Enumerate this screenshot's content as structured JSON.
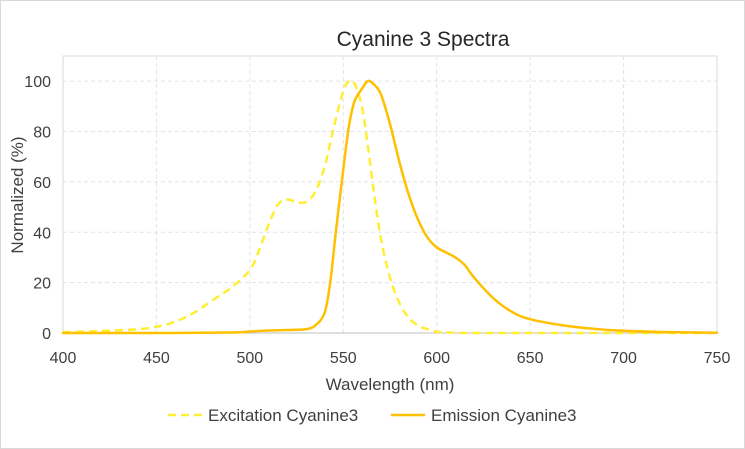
{
  "chart_data": {
    "type": "line",
    "title": "Cyanine 3  Spectra",
    "xlabel": "Wavelength (nm)",
    "ylabel": "Normalized (%)",
    "xlim": [
      400,
      750
    ],
    "ylim": [
      0,
      110
    ],
    "xticks": [
      400,
      450,
      500,
      550,
      600,
      650,
      700,
      750
    ],
    "yticks": [
      0,
      20,
      40,
      60,
      80,
      100
    ],
    "xtick_labels": [
      "400",
      "450",
      "500",
      "550",
      "600",
      "650",
      "700",
      "750"
    ],
    "ytick_labels": [
      "0",
      "20",
      "40",
      "60",
      "80",
      "100"
    ],
    "grid": true,
    "legend_position": "bottom",
    "series": [
      {
        "name": "Excitation Cyanine3",
        "color": "#ffee33",
        "style": "dashed",
        "x": [
          400,
          420,
          440,
          450,
          460,
          470,
          480,
          490,
          500,
          505,
          510,
          515,
          520,
          525,
          530,
          535,
          540,
          545,
          550,
          553,
          556,
          560,
          563,
          566,
          570,
          575,
          580,
          585,
          590,
          595,
          600,
          610,
          620,
          650,
          700,
          750
        ],
        "y": [
          0.3,
          0.8,
          1.5,
          2.5,
          4.5,
          8,
          13,
          18,
          25,
          33,
          43,
          51,
          53,
          52,
          52,
          56,
          66,
          82,
          96,
          100,
          99,
          90,
          75,
          58,
          38,
          22,
          12,
          6,
          3,
          1.5,
          0.5,
          0.1,
          0,
          0,
          0,
          0
        ]
      },
      {
        "name": "Emission Cyanine3",
        "color": "#ffc000",
        "style": "solid",
        "x": [
          400,
          450,
          490,
          500,
          510,
          520,
          530,
          535,
          540,
          543,
          546,
          550,
          553,
          556,
          560,
          563,
          566,
          570,
          575,
          580,
          585,
          590,
          595,
          600,
          605,
          610,
          615,
          620,
          630,
          640,
          650,
          670,
          690,
          700,
          720,
          750
        ],
        "y": [
          0,
          0,
          0.2,
          0.6,
          1,
          1.2,
          1.5,
          3,
          8,
          20,
          40,
          65,
          82,
          92,
          97,
          100,
          99,
          95,
          83,
          68,
          55,
          45,
          38,
          34,
          32,
          30,
          27,
          22,
          14,
          8.5,
          5.5,
          2.8,
          1.3,
          0.9,
          0.4,
          0.1
        ]
      }
    ]
  }
}
